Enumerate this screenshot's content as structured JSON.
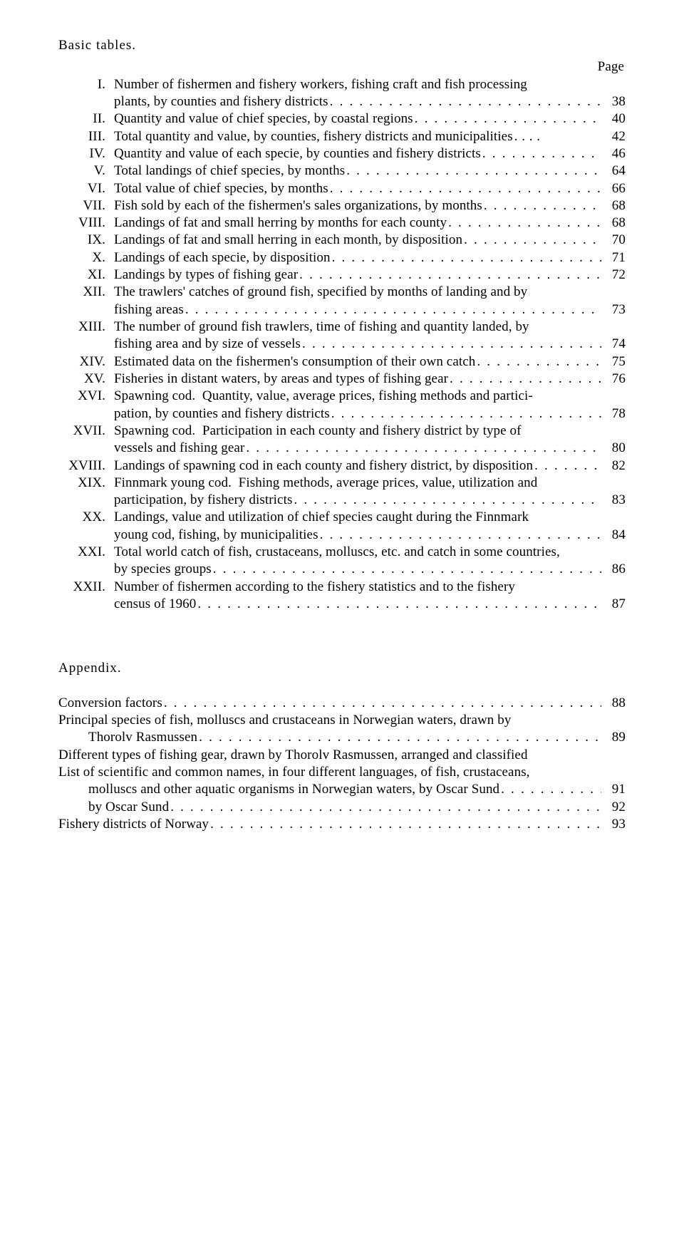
{
  "font_color": "#000000",
  "background_color": "#ffffff",
  "basic_tables": {
    "heading": "Basic tables.",
    "page_label": "Page",
    "items": [
      {
        "num": "I.",
        "lines": [
          "Number of fishermen and fishery workers, fishing craft and fish processing",
          "plants, by counties and fishery districts"
        ],
        "page": "38"
      },
      {
        "num": "II.",
        "lines": [
          "Quantity and value of chief species, by coastal regions"
        ],
        "page": "40"
      },
      {
        "num": "III.",
        "lines": [
          "Total quantity and value, by counties, fishery districts and municipalities"
        ],
        "page": "42",
        "tight_dots": true
      },
      {
        "num": "IV.",
        "lines": [
          "Quantity and value of each specie, by counties and fishery districts"
        ],
        "page": "46"
      },
      {
        "num": "V.",
        "lines": [
          "Total landings of chief species, by months"
        ],
        "page": "64"
      },
      {
        "num": "VI.",
        "lines": [
          "Total value of chief species, by months"
        ],
        "page": "66"
      },
      {
        "num": "VII.",
        "lines": [
          "Fish sold by each of the fishermen's sales organizations, by months"
        ],
        "page": "68"
      },
      {
        "num": "VIII.",
        "lines": [
          "Landings of fat and small herring by months for each county"
        ],
        "page": "68"
      },
      {
        "num": "IX.",
        "lines": [
          "Landings of fat and small herring in each month, by disposition"
        ],
        "page": "70"
      },
      {
        "num": "X.",
        "lines": [
          "Landings of each specie, by disposition"
        ],
        "page": "71"
      },
      {
        "num": "XI.",
        "lines": [
          "Landings by types of fishing gear"
        ],
        "page": "72"
      },
      {
        "num": "XII.",
        "lines": [
          "The trawlers' catches of ground fish, specified by months of landing and by",
          "fishing areas"
        ],
        "page": "73"
      },
      {
        "num": "XIII.",
        "lines": [
          "The number of ground fish trawlers, time of fishing and quantity landed, by",
          "fishing area and by size of vessels"
        ],
        "page": "74"
      },
      {
        "num": "XIV.",
        "lines": [
          "Estimated data on the fishermen's consumption of their own catch"
        ],
        "page": "75"
      },
      {
        "num": "XV.",
        "lines": [
          "Fisheries in distant waters, by areas and types of fishing gear"
        ],
        "page": "76"
      },
      {
        "num": "XVI.",
        "lines": [
          "Spawning cod.  Quantity, value, average prices, fishing methods and partici-",
          "pation, by counties and fishery districts"
        ],
        "page": "78"
      },
      {
        "num": "XVII.",
        "lines": [
          "Spawning cod.  Participation in each county and fishery district by type of",
          "vessels and fishing gear"
        ],
        "page": "80"
      },
      {
        "num": "XVIII.",
        "lines": [
          "Landings of spawning cod in each county and fishery district, by disposition"
        ],
        "page": "82"
      },
      {
        "num": "XIX.",
        "lines": [
          "Finnmark young cod.  Fishing methods, average prices, value, utilization and",
          "participation, by fishery districts"
        ],
        "page": "83"
      },
      {
        "num": "XX.",
        "lines": [
          "Landings, value and utilization of chief species caught during the Finnmark",
          "young cod, fishing, by municipalities"
        ],
        "page": "84"
      },
      {
        "num": "XXI.",
        "lines": [
          "Total world catch of fish, crustaceans, molluscs, etc. and catch in some countries,",
          "by species groups"
        ],
        "page": "86"
      },
      {
        "num": "XXII.",
        "lines": [
          "Number of fishermen according to the fishery statistics and to the fishery",
          "census of 1960"
        ],
        "page": "87"
      }
    ]
  },
  "appendix": {
    "heading": "Appendix.",
    "items": [
      {
        "lines": [
          "Conversion factors"
        ],
        "page": "88"
      },
      {
        "lines": [
          "Principal species of fish, molluscs and crustaceans in Norwegian waters, drawn by",
          "Thorolv Rasmussen"
        ],
        "indent_cont": true,
        "page": "89"
      },
      {
        "lines": [
          "Different types of fishing gear, drawn by Thorolv Rasmussen, arranged and classified"
        ],
        "no_page": true
      },
      {
        "lines": [
          "List of scientific and common names, in four different languages, of fish, crustaceans,",
          "molluscs and other aquatic organisms in Norwegian waters, by Oscar Sund"
        ],
        "indent_cont": true,
        "page": "91"
      },
      {
        "lines": [
          "by Oscar Sund"
        ],
        "indent_first": true,
        "page": "92"
      },
      {
        "lines": [
          "Fishery districts of Norway"
        ],
        "page": "93"
      }
    ]
  }
}
